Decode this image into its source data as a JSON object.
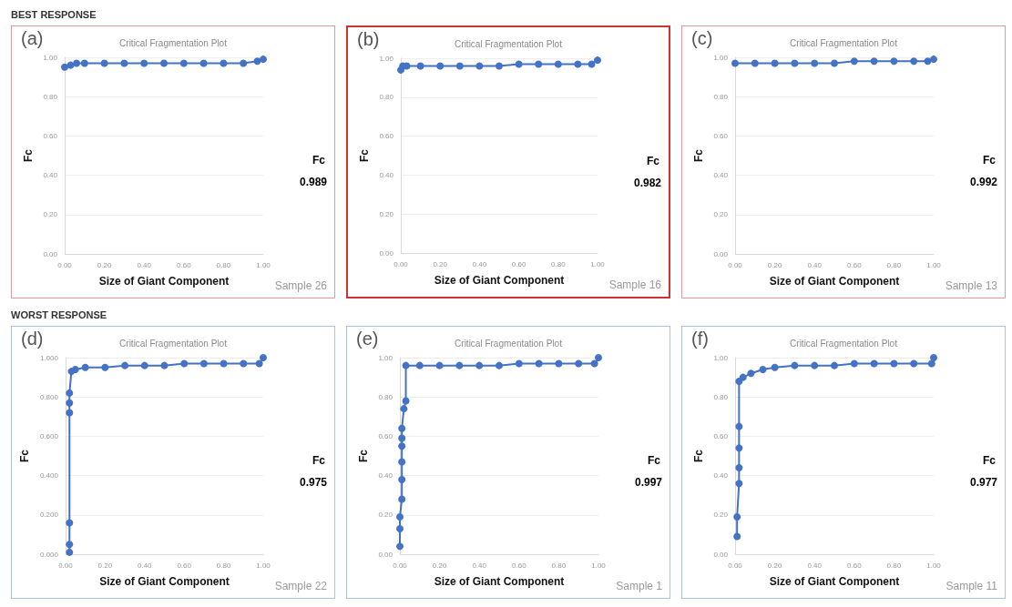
{
  "chart_data": [
    {
      "type": "line",
      "subtitle": "BEST RESPONSE",
      "title": "Critical Fragmentation Plot",
      "xlabel": "Size of Giant Component",
      "ylabel": "Fc",
      "annotations": [
        "(a)",
        "Fc",
        "0.989",
        "Sample 26"
      ],
      "marker": "circle",
      "grid": "y",
      "xlim": [
        0,
        1
      ],
      "ylim": [
        0,
        1
      ],
      "xticks": [
        {
          "value": 0,
          "label": "0.00"
        },
        {
          "value": 0.2,
          "label": "0.20"
        },
        {
          "value": 0.4,
          "label": "0.40"
        },
        {
          "value": 0.6,
          "label": "0.60"
        },
        {
          "value": 0.8,
          "label": "0.80"
        },
        {
          "value": 1,
          "label": "1.00"
        }
      ],
      "yticks": [
        {
          "value": 0,
          "label": "0.00"
        },
        {
          "value": 0.2,
          "label": "0.20"
        },
        {
          "value": 0.4,
          "label": "0.40"
        },
        {
          "value": 0.6,
          "label": "0.60"
        },
        {
          "value": 0.8,
          "label": "0.80"
        },
        {
          "value": 1,
          "label": "1.00"
        }
      ],
      "series": [
        {
          "color": "#4472c4",
          "x": [
            0,
            0.03,
            0.06,
            0.1,
            0.2,
            0.3,
            0.4,
            0.5,
            0.6,
            0.7,
            0.8,
            0.9,
            0.97,
            1
          ],
          "values": [
            0.95,
            0.96,
            0.97,
            0.97,
            0.97,
            0.97,
            0.97,
            0.97,
            0.97,
            0.97,
            0.97,
            0.97,
            0.98,
            0.99
          ]
        }
      ]
    },
    {
      "type": "line",
      "title": "Critical Fragmentation Plot",
      "xlabel": "Size of Giant Component",
      "ylabel": "Fc",
      "annotations": [
        "(b)",
        "Fc",
        "0.982",
        "Sample 16"
      ],
      "marker": "circle",
      "grid": "y",
      "xlim": [
        0,
        1
      ],
      "ylim": [
        0,
        1
      ],
      "xticks": [
        {
          "value": 0,
          "label": "0.00"
        },
        {
          "value": 0.2,
          "label": "0.20"
        },
        {
          "value": 0.4,
          "label": "0.40"
        },
        {
          "value": 0.6,
          "label": "0.60"
        },
        {
          "value": 0.8,
          "label": "0.80"
        },
        {
          "value": 1,
          "label": "1.00"
        }
      ],
      "yticks": [
        {
          "value": 0,
          "label": "0.00"
        },
        {
          "value": 0.2,
          "label": "0.20"
        },
        {
          "value": 0.4,
          "label": "0.40"
        },
        {
          "value": 0.6,
          "label": "0.60"
        },
        {
          "value": 0.8,
          "label": "0.80"
        },
        {
          "value": 1,
          "label": "1.00"
        }
      ],
      "series": [
        {
          "color": "#4472c4",
          "x": [
            0,
            0.01,
            0.03,
            0.1,
            0.2,
            0.3,
            0.4,
            0.5,
            0.6,
            0.7,
            0.8,
            0.9,
            0.97,
            1
          ],
          "values": [
            0.94,
            0.96,
            0.96,
            0.96,
            0.96,
            0.96,
            0.96,
            0.96,
            0.97,
            0.97,
            0.97,
            0.97,
            0.97,
            0.99
          ]
        }
      ]
    },
    {
      "type": "line",
      "title": "Critical Fragmentation Plot",
      "xlabel": "Size of Giant Component",
      "ylabel": "Fc",
      "annotations": [
        "(c)",
        "Fc",
        "0.992",
        "Sample 13"
      ],
      "marker": "circle",
      "grid": "y",
      "xlim": [
        0,
        1
      ],
      "ylim": [
        0,
        1
      ],
      "xticks": [
        {
          "value": 0,
          "label": "0.00"
        },
        {
          "value": 0.2,
          "label": "0.20"
        },
        {
          "value": 0.4,
          "label": "0.40"
        },
        {
          "value": 0.6,
          "label": "0.60"
        },
        {
          "value": 0.8,
          "label": "0.80"
        },
        {
          "value": 1,
          "label": "1.00"
        }
      ],
      "yticks": [
        {
          "value": 0,
          "label": "0.00"
        },
        {
          "value": 0.2,
          "label": "0.20"
        },
        {
          "value": 0.4,
          "label": "0.40"
        },
        {
          "value": 0.6,
          "label": "0.60"
        },
        {
          "value": 0.8,
          "label": "0.80"
        },
        {
          "value": 1,
          "label": "1.00"
        }
      ],
      "series": [
        {
          "color": "#4472c4",
          "x": [
            0,
            0.1,
            0.2,
            0.3,
            0.4,
            0.5,
            0.6,
            0.7,
            0.8,
            0.9,
            0.97,
            1
          ],
          "values": [
            0.97,
            0.97,
            0.97,
            0.97,
            0.97,
            0.97,
            0.98,
            0.98,
            0.98,
            0.98,
            0.98,
            0.99
          ]
        }
      ]
    },
    {
      "type": "line",
      "subtitle": "WORST RESPONSE",
      "title": "Critical Fragmentation Plot",
      "xlabel": "Size of Giant Component",
      "ylabel": "Fc",
      "annotations": [
        "(d)",
        "Fc",
        "0.975",
        "Sample 22"
      ],
      "marker": "circle",
      "grid": "y",
      "xlim": [
        0,
        1
      ],
      "ylim": [
        0,
        1
      ],
      "xticks": [
        {
          "value": 0,
          "label": "0.00"
        },
        {
          "value": 0.2,
          "label": "0.20"
        },
        {
          "value": 0.4,
          "label": "0.40"
        },
        {
          "value": 0.6,
          "label": "0.60"
        },
        {
          "value": 0.8,
          "label": "0.80"
        },
        {
          "value": 1,
          "label": "1.00"
        }
      ],
      "yticks": [
        {
          "value": 0,
          "label": "0.000"
        },
        {
          "value": 0.2,
          "label": "0.200"
        },
        {
          "value": 0.4,
          "label": "0.400"
        },
        {
          "value": 0.6,
          "label": "0.600"
        },
        {
          "value": 0.8,
          "label": "0.800"
        },
        {
          "value": 1,
          "label": "1.000"
        }
      ],
      "series": [
        {
          "color": "#4472c4",
          "x": [
            0.02,
            0.02,
            0.02,
            0.02,
            0.02,
            0.02,
            0.03,
            0.05,
            0.1,
            0.2,
            0.3,
            0.4,
            0.5,
            0.6,
            0.7,
            0.8,
            0.9,
            0.98,
            1
          ],
          "values": [
            0.01,
            0.05,
            0.16,
            0.72,
            0.77,
            0.82,
            0.93,
            0.94,
            0.95,
            0.95,
            0.96,
            0.96,
            0.96,
            0.97,
            0.97,
            0.97,
            0.97,
            0.97,
            1.0
          ]
        }
      ]
    },
    {
      "type": "line",
      "title": "Critical Fragmentation Plot",
      "xlabel": "Size of Giant Component",
      "ylabel": "Fc",
      "annotations": [
        "(e)",
        "Fc",
        "0.997",
        "Sample 1"
      ],
      "marker": "circle",
      "grid": "y",
      "xlim": [
        0,
        1
      ],
      "ylim": [
        0,
        1
      ],
      "xticks": [
        {
          "value": 0,
          "label": "0.00"
        },
        {
          "value": 0.2,
          "label": "0.20"
        },
        {
          "value": 0.4,
          "label": "0.40"
        },
        {
          "value": 0.6,
          "label": "0.60"
        },
        {
          "value": 0.8,
          "label": "0.80"
        },
        {
          "value": 1,
          "label": "1.00"
        }
      ],
      "yticks": [
        {
          "value": 0,
          "label": "0.00"
        },
        {
          "value": 0.2,
          "label": "0.20"
        },
        {
          "value": 0.4,
          "label": "0.40"
        },
        {
          "value": 0.6,
          "label": "0.60"
        },
        {
          "value": 0.8,
          "label": "0.80"
        },
        {
          "value": 1,
          "label": "1.00"
        }
      ],
      "series": [
        {
          "color": "#4472c4",
          "x": [
            0,
            0,
            0,
            0.01,
            0.01,
            0.01,
            0.01,
            0.01,
            0.01,
            0.02,
            0.03,
            0.03,
            0.1,
            0.2,
            0.3,
            0.4,
            0.5,
            0.6,
            0.7,
            0.8,
            0.9,
            0.98,
            1
          ],
          "values": [
            0.04,
            0.13,
            0.19,
            0.28,
            0.38,
            0.47,
            0.55,
            0.59,
            0.64,
            0.74,
            0.78,
            0.96,
            0.96,
            0.96,
            0.96,
            0.96,
            0.96,
            0.97,
            0.97,
            0.97,
            0.97,
            0.97,
            1.0
          ]
        }
      ]
    },
    {
      "type": "line",
      "title": "Critical Fragmentation Plot",
      "xlabel": "Size of Giant Component",
      "ylabel": "Fc",
      "annotations": [
        "(f)",
        "Fc",
        "0.977",
        "Sample 11"
      ],
      "marker": "circle",
      "grid": "y",
      "xlim": [
        0,
        1
      ],
      "ylim": [
        0,
        1
      ],
      "xticks": [
        {
          "value": 0,
          "label": "0.00"
        },
        {
          "value": 0.2,
          "label": "0.20"
        },
        {
          "value": 0.4,
          "label": "0.40"
        },
        {
          "value": 0.6,
          "label": "0.60"
        },
        {
          "value": 0.8,
          "label": "0.80"
        },
        {
          "value": 1,
          "label": "1.00"
        }
      ],
      "yticks": [
        {
          "value": 0,
          "label": "0.00"
        },
        {
          "value": 0.2,
          "label": "0.20"
        },
        {
          "value": 0.4,
          "label": "0.40"
        },
        {
          "value": 0.6,
          "label": "0.60"
        },
        {
          "value": 0.8,
          "label": "0.80"
        },
        {
          "value": 1,
          "label": "1.00"
        }
      ],
      "series": [
        {
          "color": "#4472c4",
          "x": [
            0.01,
            0.01,
            0.02,
            0.02,
            0.02,
            0.02,
            0.02,
            0.04,
            0.08,
            0.14,
            0.2,
            0.3,
            0.4,
            0.5,
            0.6,
            0.7,
            0.8,
            0.9,
            0.99,
            1
          ],
          "values": [
            0.09,
            0.19,
            0.36,
            0.44,
            0.54,
            0.65,
            0.88,
            0.9,
            0.92,
            0.94,
            0.95,
            0.96,
            0.96,
            0.96,
            0.97,
            0.97,
            0.97,
            0.97,
            0.97,
            1.0
          ]
        }
      ]
    }
  ]
}
